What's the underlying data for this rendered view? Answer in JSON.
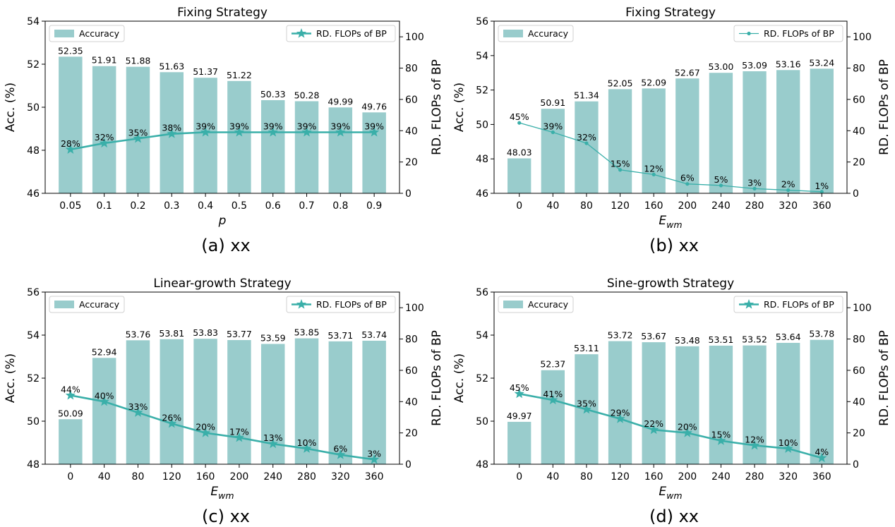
{
  "chart_data": [
    {
      "type": "bar",
      "title": "Fixing Strategy",
      "caption": "(a) xx",
      "xlabel": "p",
      "xlabel_sub": "",
      "ylabel": "Acc. (%)",
      "y2label": "RD. FLOPs of BP",
      "categories": [
        "0.05",
        "0.1",
        "0.2",
        "0.3",
        "0.4",
        "0.5",
        "0.6",
        "0.7",
        "0.8",
        "0.9"
      ],
      "ylim": [
        46,
        54
      ],
      "yticks": [
        46,
        48,
        50,
        52,
        54
      ],
      "y2lim": [
        0,
        110
      ],
      "y2ticks": [
        0,
        20,
        40,
        60,
        80,
        100
      ],
      "series": [
        {
          "name": "Accuracy",
          "kind": "bar",
          "axis": "left",
          "values": [
            52.35,
            51.91,
            51.88,
            51.63,
            51.37,
            51.22,
            50.33,
            50.28,
            49.99,
            49.76
          ],
          "labels": [
            "52.35",
            "51.91",
            "51.88",
            "51.63",
            "51.37",
            "51.22",
            "50.33",
            "50.28",
            "49.99",
            "49.76"
          ]
        },
        {
          "name": "RD. FLOPs of BP",
          "kind": "line",
          "axis": "right",
          "marker": "star",
          "values": [
            28,
            32,
            35,
            38,
            39,
            39,
            39,
            39,
            39,
            39
          ],
          "labels": [
            "28%",
            "32%",
            "35%",
            "38%",
            "39%",
            "39%",
            "39%",
            "39%",
            "39%",
            "39%"
          ]
        }
      ],
      "legend": {
        "bar": "top-left",
        "line": "top-right"
      },
      "colors": {
        "bar": "#99cccc",
        "line": "#3aafa9"
      },
      "grid": false
    },
    {
      "type": "bar",
      "title": "Fixing Strategy",
      "caption": "(b) xx",
      "xlabel": "E",
      "xlabel_sub": "wm",
      "ylabel": "Acc. (%)",
      "y2label": "RD. FLOPs of BP",
      "categories": [
        "0",
        "40",
        "80",
        "120",
        "160",
        "200",
        "240",
        "280",
        "320",
        "360"
      ],
      "ylim": [
        46,
        56
      ],
      "yticks": [
        46,
        48,
        50,
        52,
        54,
        56
      ],
      "y2lim": [
        0,
        110
      ],
      "y2ticks": [
        0,
        20,
        40,
        60,
        80,
        100
      ],
      "series": [
        {
          "name": "Accuracy",
          "kind": "bar",
          "axis": "left",
          "values": [
            48.03,
            50.91,
            51.34,
            52.05,
            52.09,
            52.67,
            53.0,
            53.09,
            53.16,
            53.24
          ],
          "labels": [
            "48.03",
            "50.91",
            "51.34",
            "52.05",
            "52.09",
            "52.67",
            "53.00",
            "53.09",
            "53.16",
            "53.24"
          ]
        },
        {
          "name": "RD. FLOPs of BP",
          "kind": "line",
          "axis": "right",
          "marker": "dot",
          "values": [
            45,
            39,
            32,
            15,
            12,
            6,
            5,
            3,
            2,
            1
          ],
          "labels": [
            "45%",
            "39%",
            "32%",
            "15%",
            "12%",
            "6%",
            "5%",
            "3%",
            "2%",
            "1%"
          ]
        }
      ],
      "legend": {
        "bar": "top-left",
        "line": "top-right"
      },
      "colors": {
        "bar": "#99cccc",
        "line": "#3aafa9"
      },
      "grid": false
    },
    {
      "type": "bar",
      "title": "Linear-growth Strategy",
      "caption": "(c) xx",
      "xlabel": "E",
      "xlabel_sub": "wm",
      "ylabel": "Acc. (%)",
      "y2label": "RD. FLOPs of BP",
      "categories": [
        "0",
        "40",
        "80",
        "120",
        "160",
        "200",
        "240",
        "280",
        "320",
        "360"
      ],
      "ylim": [
        48,
        56
      ],
      "yticks": [
        48,
        50,
        52,
        54,
        56
      ],
      "y2lim": [
        0,
        110
      ],
      "y2ticks": [
        0,
        20,
        40,
        60,
        80,
        100
      ],
      "series": [
        {
          "name": "Accuracy",
          "kind": "bar",
          "axis": "left",
          "values": [
            50.09,
            52.94,
            53.76,
            53.81,
            53.83,
            53.77,
            53.59,
            53.85,
            53.71,
            53.74
          ],
          "labels": [
            "50.09",
            "52.94",
            "53.76",
            "53.81",
            "53.83",
            "53.77",
            "53.59",
            "53.85",
            "53.71",
            "53.74"
          ]
        },
        {
          "name": "RD. FLOPs of BP",
          "kind": "line",
          "axis": "right",
          "marker": "star",
          "values": [
            44,
            40,
            33,
            26,
            20,
            17,
            13,
            10,
            6,
            3
          ],
          "labels": [
            "44%",
            "40%",
            "33%",
            "26%",
            "20%",
            "17%",
            "13%",
            "10%",
            "6%",
            "3%"
          ]
        }
      ],
      "legend": {
        "bar": "top-left",
        "line": "top-right"
      },
      "colors": {
        "bar": "#99cccc",
        "line": "#3aafa9"
      },
      "grid": false
    },
    {
      "type": "bar",
      "title": "Sine-growth Strategy",
      "caption": "(d) xx",
      "xlabel": "E",
      "xlabel_sub": "wm",
      "ylabel": "Acc. (%)",
      "y2label": "RD. FLOPs of BP",
      "categories": [
        "0",
        "40",
        "80",
        "120",
        "160",
        "200",
        "240",
        "280",
        "320",
        "360"
      ],
      "ylim": [
        48,
        56
      ],
      "yticks": [
        48,
        50,
        52,
        54,
        56
      ],
      "y2lim": [
        0,
        110
      ],
      "y2ticks": [
        0,
        20,
        40,
        60,
        80,
        100
      ],
      "series": [
        {
          "name": "Accuracy",
          "kind": "bar",
          "axis": "left",
          "values": [
            49.97,
            52.37,
            53.11,
            53.72,
            53.67,
            53.48,
            53.51,
            53.52,
            53.64,
            53.78
          ],
          "labels": [
            "49.97",
            "52.37",
            "53.11",
            "53.72",
            "53.67",
            "53.48",
            "53.51",
            "53.52",
            "53.64",
            "53.78"
          ]
        },
        {
          "name": "RD. FLOPs of BP",
          "kind": "line",
          "axis": "right",
          "marker": "star",
          "values": [
            45,
            41,
            35,
            29,
            22,
            20,
            15,
            12,
            10,
            4
          ],
          "labels": [
            "45%",
            "41%",
            "35%",
            "29%",
            "22%",
            "20%",
            "15%",
            "12%",
            "10%",
            "4%"
          ]
        }
      ],
      "legend": {
        "bar": "top-left",
        "line": "top-right"
      },
      "colors": {
        "bar": "#99cccc",
        "line": "#3aafa9"
      },
      "grid": false
    }
  ]
}
